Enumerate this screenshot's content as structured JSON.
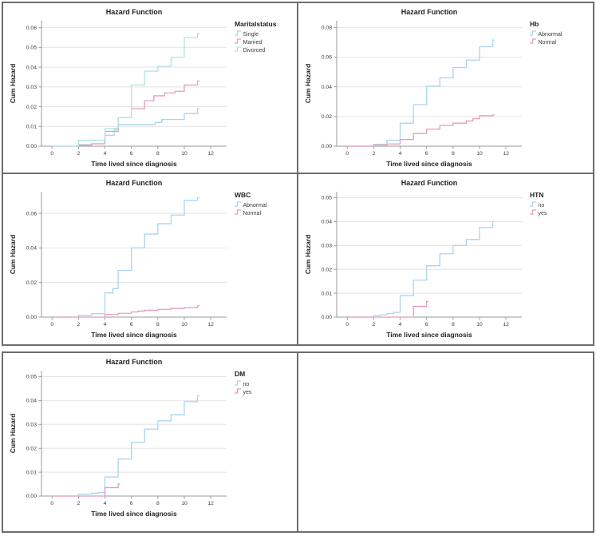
{
  "page": {
    "background": "#ffffff",
    "table_border_color": "#6d6d6d",
    "layout": "two tables: top 2x2 grid of charts, bottom 1x2 with one chart and one empty cell"
  },
  "styles": {
    "grid_color": "#e4e4e4",
    "axis_color": "#9a9a9a",
    "tick_text_color": "#3a3a3a",
    "title_color": "#1f1f1f"
  },
  "chart_data": [
    {
      "type": "line",
      "subtype": "step",
      "title": "Hazard Function",
      "xlabel": "Time lived since diagnosis",
      "ylabel": "Cum Hazard",
      "legend_title": "Maritalstatus",
      "legend_position": "right",
      "grid": "horizontal",
      "xticks": [
        0,
        2,
        4,
        6,
        8,
        10,
        12
      ],
      "xmin": -0.8,
      "xmax": 13.2,
      "yticks": [
        0.0,
        0.01,
        0.02,
        0.03,
        0.04,
        0.05,
        0.06
      ],
      "ymax": 0.0635,
      "series": [
        {
          "name": "Single",
          "color": "#A9D5F0",
          "points": [
            [
              0,
              0
            ],
            [
              2,
              0.0008
            ],
            [
              3,
              0.0012
            ],
            [
              4,
              0.0055
            ],
            [
              4.7,
              0.0085
            ],
            [
              5,
              0.011
            ],
            [
              7.8,
              0.012
            ],
            [
              8.3,
              0.0135
            ],
            [
              10,
              0.0165
            ],
            [
              11,
              0.019
            ]
          ]
        },
        {
          "name": "Married",
          "color": "#E79CB5",
          "points": [
            [
              0,
              0
            ],
            [
              2,
              0.0005
            ],
            [
              3,
              0.0012
            ],
            [
              4,
              0.0075
            ],
            [
              5,
              0.0145
            ],
            [
              6,
              0.019
            ],
            [
              7,
              0.023
            ],
            [
              7.7,
              0.0255
            ],
            [
              8.5,
              0.027
            ],
            [
              9.3,
              0.0278
            ],
            [
              10,
              0.031
            ],
            [
              11,
              0.033
            ]
          ]
        },
        {
          "name": "Divorced",
          "color": "#AEE6E2",
          "points": [
            [
              0,
              0
            ],
            [
              2,
              0.003
            ],
            [
              4,
              0.009
            ],
            [
              5,
              0.0145
            ],
            [
              6,
              0.031
            ],
            [
              7,
              0.038
            ],
            [
              8,
              0.0405
            ],
            [
              9,
              0.045
            ],
            [
              10,
              0.055
            ],
            [
              11,
              0.057
            ]
          ]
        }
      ]
    },
    {
      "type": "line",
      "subtype": "step",
      "title": "Hazard Function",
      "xlabel": "Time lived since diagnosis",
      "ylabel": "Cum Hazard",
      "legend_title": "Hb",
      "legend_position": "right",
      "grid": "horizontal",
      "xticks": [
        0,
        2,
        4,
        6,
        8,
        10,
        12
      ],
      "xmin": -0.8,
      "xmax": 13.2,
      "yticks": [
        0.0,
        0.02,
        0.04,
        0.06,
        0.08
      ],
      "ymax": 0.0845,
      "series": [
        {
          "name": "Abnormal",
          "color": "#A9D5F0",
          "points": [
            [
              0,
              0
            ],
            [
              2,
              0.0012
            ],
            [
              3,
              0.004
            ],
            [
              4,
              0.0155
            ],
            [
              5,
              0.028
            ],
            [
              6,
              0.0405
            ],
            [
              7,
              0.046
            ],
            [
              8,
              0.053
            ],
            [
              9,
              0.058
            ],
            [
              10,
              0.067
            ],
            [
              11,
              0.0715
            ]
          ]
        },
        {
          "name": "Normal",
          "color": "#E79CB5",
          "points": [
            [
              0,
              0
            ],
            [
              2,
              0.0008
            ],
            [
              3,
              0.0015
            ],
            [
              4,
              0.0045
            ],
            [
              5,
              0.0085
            ],
            [
              6,
              0.0115
            ],
            [
              7,
              0.014
            ],
            [
              8,
              0.0155
            ],
            [
              9,
              0.017
            ],
            [
              9.5,
              0.0185
            ],
            [
              10,
              0.0205
            ],
            [
              11,
              0.021
            ]
          ]
        }
      ]
    },
    {
      "type": "line",
      "subtype": "step",
      "title": "Hazard Function",
      "xlabel": "Time lived since diagnosis",
      "ylabel": "Cum Hazard",
      "legend_title": "WBC",
      "legend_position": "right",
      "grid": "horizontal",
      "xticks": [
        0,
        2,
        4,
        6,
        8,
        10,
        12
      ],
      "xmin": -0.8,
      "xmax": 13.2,
      "yticks": [
        0.0,
        0.02,
        0.04,
        0.06
      ],
      "ymax": 0.0725,
      "series": [
        {
          "name": "Abnormal",
          "color": "#A9D5F0",
          "points": [
            [
              0,
              0
            ],
            [
              2,
              0.001
            ],
            [
              3,
              0.002
            ],
            [
              4,
              0.014
            ],
            [
              4.6,
              0.0165
            ],
            [
              5,
              0.027
            ],
            [
              6,
              0.04
            ],
            [
              7,
              0.048
            ],
            [
              8,
              0.054
            ],
            [
              9,
              0.059
            ],
            [
              10,
              0.0675
            ],
            [
              11,
              0.069
            ]
          ]
        },
        {
          "name": "Normal",
          "color": "#E79CB5",
          "points": [
            [
              0,
              0
            ],
            [
              4,
              0.0015
            ],
            [
              5,
              0.0022
            ],
            [
              6,
              0.003
            ],
            [
              6.5,
              0.0035
            ],
            [
              7,
              0.004
            ],
            [
              8,
              0.0045
            ],
            [
              9,
              0.005
            ],
            [
              10,
              0.0055
            ],
            [
              11,
              0.0065
            ]
          ]
        }
      ]
    },
    {
      "type": "line",
      "subtype": "step",
      "title": "Hazard Function",
      "xlabel": "Time lived since diagnosis",
      "ylabel": "Cum Hazard",
      "legend_title": "HTN",
      "legend_position": "right",
      "grid": "horizontal",
      "xticks": [
        0,
        2,
        4,
        6,
        8,
        10,
        12
      ],
      "xmin": -0.8,
      "xmax": 13.2,
      "yticks": [
        0.0,
        0.01,
        0.02,
        0.03,
        0.04,
        0.05
      ],
      "ymax": 0.0525,
      "series": [
        {
          "name": "no",
          "color": "#A9D5F0",
          "points": [
            [
              0,
              0
            ],
            [
              2,
              0.0006
            ],
            [
              2.5,
              0.001
            ],
            [
              3,
              0.0015
            ],
            [
              3.5,
              0.002
            ],
            [
              4,
              0.009
            ],
            [
              5,
              0.0155
            ],
            [
              6,
              0.0215
            ],
            [
              7,
              0.0265
            ],
            [
              8,
              0.03
            ],
            [
              9,
              0.0325
            ],
            [
              10,
              0.0375
            ],
            [
              11,
              0.04
            ]
          ]
        },
        {
          "name": "yes",
          "color": "#E79CB5",
          "points": [
            [
              0,
              0
            ],
            [
              5,
              0.0045
            ],
            [
              6,
              0.0065
            ]
          ]
        }
      ]
    },
    {
      "type": "line",
      "subtype": "step",
      "title": "Hazard Function",
      "xlabel": "Time lived since diagnosis",
      "ylabel": "Cum Hazard",
      "legend_title": "DM",
      "legend_position": "right",
      "grid": "horizontal",
      "xticks": [
        0,
        2,
        4,
        6,
        8,
        10,
        12
      ],
      "xmin": -0.8,
      "xmax": 13.2,
      "yticks": [
        0.0,
        0.01,
        0.02,
        0.03,
        0.04,
        0.05
      ],
      "ymax": 0.0525,
      "series": [
        {
          "name": "no",
          "color": "#A9D5F0",
          "points": [
            [
              0,
              0
            ],
            [
              2,
              0.0008
            ],
            [
              3,
              0.0012
            ],
            [
              3.5,
              0.0015
            ],
            [
              4,
              0.008
            ],
            [
              5,
              0.0155
            ],
            [
              6,
              0.0225
            ],
            [
              7,
              0.028
            ],
            [
              8,
              0.0315
            ],
            [
              9,
              0.034
            ],
            [
              10,
              0.0395
            ],
            [
              11,
              0.042
            ]
          ]
        },
        {
          "name": "yes",
          "color": "#E79CB5",
          "points": [
            [
              0,
              0
            ],
            [
              4,
              0.0035
            ],
            [
              5,
              0.005
            ]
          ]
        }
      ]
    }
  ]
}
